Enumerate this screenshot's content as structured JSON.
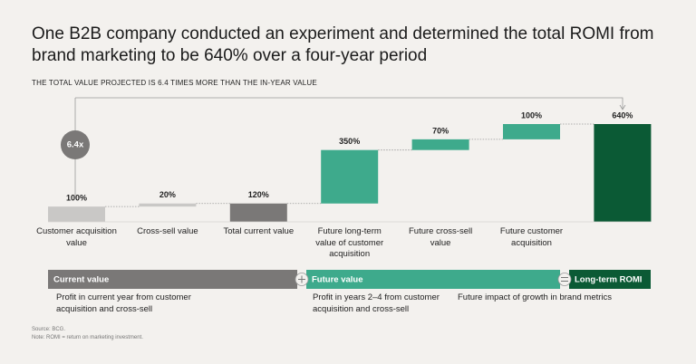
{
  "chart_data": {
    "type": "waterfall",
    "title": "One B2B company conducted an experiment and determined the total ROMI from brand marketing to be 640% over a four-year period",
    "subtitle": "THE TOTAL VALUE PROJECTED IS 6.4 TIMES MORE THAN THE IN-YEAR VALUE",
    "categories": [
      "Customer acquisition value",
      "Cross-sell value",
      "Total current value",
      "Future long-term value of customer acquisition",
      "Future cross-sell value",
      "Future customer acquisition",
      null
    ],
    "values": [
      100,
      20,
      120,
      350,
      70,
      100,
      640
    ],
    "value_labels": [
      "100%",
      "20%",
      "120%",
      "350%",
      "70%",
      "100%",
      "640%"
    ],
    "kinds": [
      "step",
      "step",
      "total",
      "step",
      "step",
      "step",
      "total"
    ],
    "colors": [
      "#c9c8c6",
      "#c9c8c6",
      "#7a7877",
      "#3eaa8c",
      "#3eaa8c",
      "#3eaa8c",
      "#0b5a35"
    ],
    "annotation": "6.4x",
    "phases": [
      {
        "name": "Current value",
        "color": "#7a7877",
        "descriptions": [
          "Profit in current year from customer acquisition and cross-sell"
        ]
      },
      {
        "name": "Future value",
        "color": "#3eaa8c",
        "descriptions": [
          "Profit in years 2–4 from customer acquisition and cross-sell",
          "Future impact of growth in brand metrics"
        ]
      },
      {
        "name": "Long-term ROMI",
        "color": "#0b5a35"
      }
    ],
    "source": "Source: BCG.",
    "note": "Note: ROMI = return on marketing investment."
  }
}
